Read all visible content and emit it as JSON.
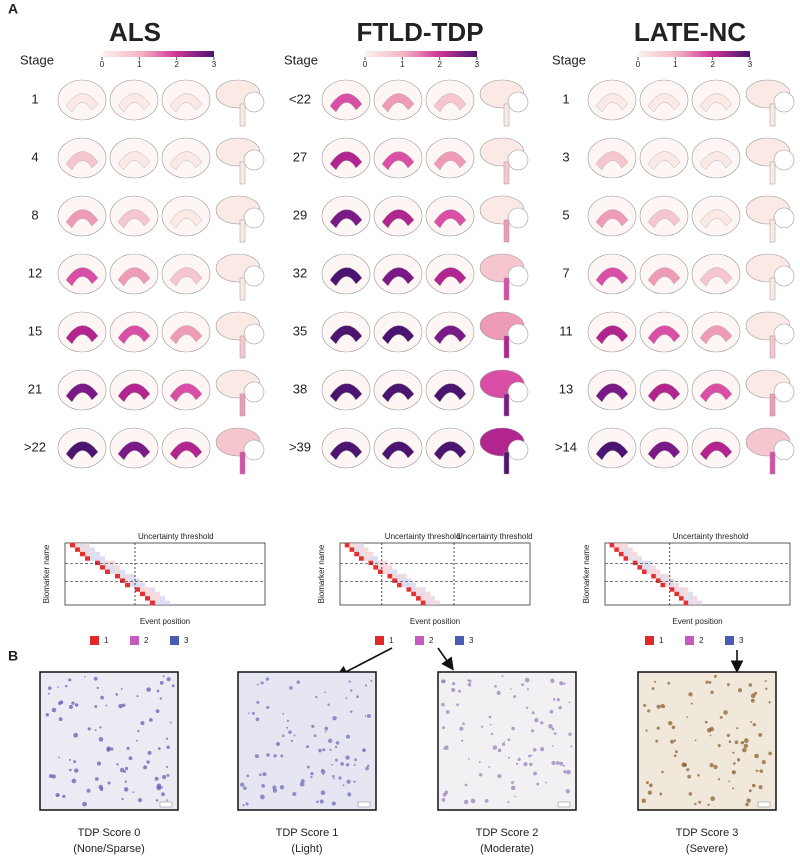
{
  "panels": {
    "a": "A",
    "b": "B"
  },
  "columns": [
    {
      "title": "ALS",
      "stage_header": "Stage",
      "colorbar_ticks": [
        0,
        1,
        2,
        3
      ],
      "stages": [
        "1",
        "4",
        "8",
        "12",
        "15",
        "21",
        ">22"
      ],
      "heatmap": {
        "thresholds": [
          "Uncertainty threshold"
        ],
        "y_label": "Biomarker name",
        "x_label": "Event position"
      },
      "legend": [
        1,
        2,
        3
      ]
    },
    {
      "title": "FTLD-TDP",
      "stage_header": "Stage",
      "colorbar_ticks": [
        0,
        1,
        2,
        3
      ],
      "stages": [
        "<22",
        "27",
        "29",
        "32",
        "35",
        "38",
        ">39"
      ],
      "heatmap": {
        "thresholds": [
          "Uncertainty threshold",
          "Uncertainty threshold"
        ],
        "y_label": "Biomarker name",
        "x_label": "Event position"
      },
      "legend": [
        1,
        2,
        3
      ]
    },
    {
      "title": "LATE-NC",
      "stage_header": "Stage",
      "colorbar_ticks": [
        0,
        1,
        2,
        3
      ],
      "stages": [
        "1",
        "3",
        "5",
        "7",
        "11",
        "13",
        ">14"
      ],
      "heatmap": {
        "thresholds": [
          "Uncertainty threshold"
        ],
        "y_label": "Biomarker name",
        "x_label": "Event position"
      },
      "legend": [
        1,
        2,
        3
      ]
    }
  ],
  "images": [
    {
      "title": "TDP Score 0",
      "subtitle": "(None/Sparse)"
    },
    {
      "title": "TDP Score 1",
      "subtitle": "(Light)"
    },
    {
      "title": "TDP Score 2",
      "subtitle": "(Moderate)"
    },
    {
      "title": "TDP Score 3",
      "subtitle": "(Severe)"
    }
  ]
}
